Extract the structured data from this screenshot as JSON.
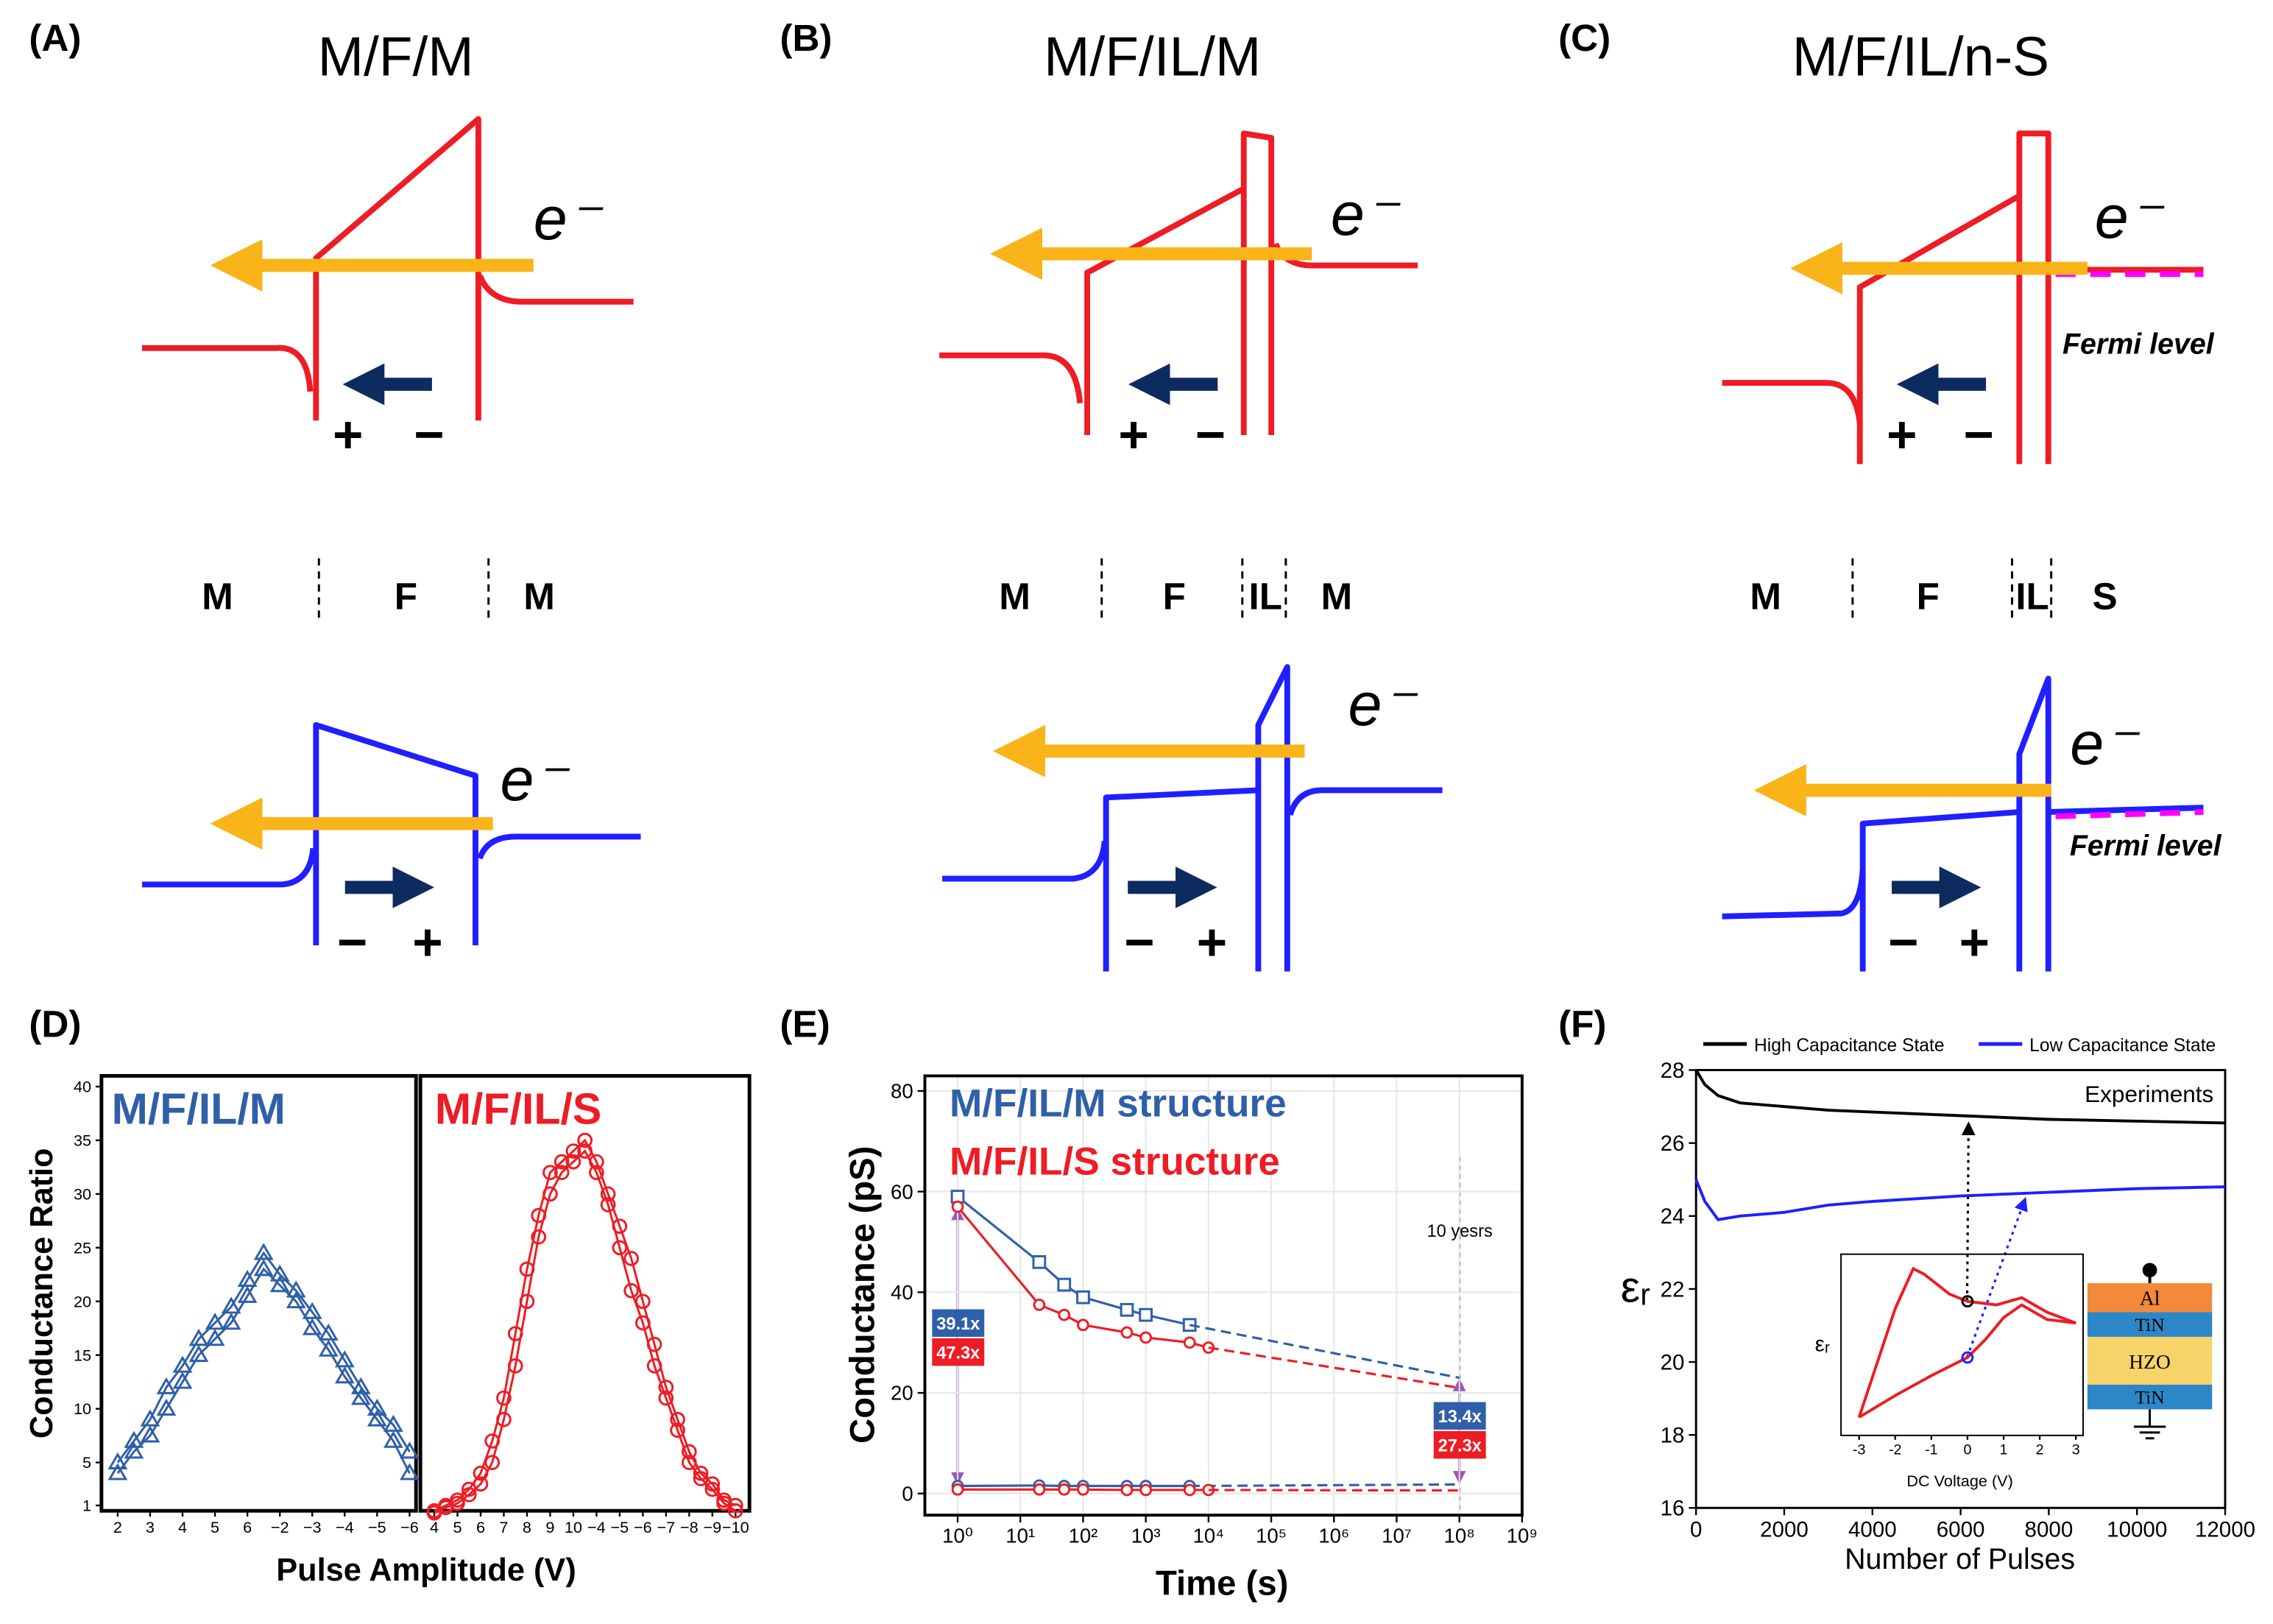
{
  "panels": [
    {
      "letter": "(A)",
      "title": "M/F/M",
      "electrons": [
        "e⁻",
        "e⁻"
      ],
      "charges": [
        "+",
        "−",
        "−",
        "+"
      ],
      "regions": [
        "M",
        "F",
        "M"
      ]
    },
    {
      "letter": "(B)",
      "title": "M/F/IL/M",
      "electrons": [
        "e⁻",
        "e⁻"
      ],
      "charges": [
        "+",
        "−",
        "−",
        "+"
      ],
      "regions": [
        "M",
        "F",
        "IL",
        "M"
      ]
    },
    {
      "letter": "(C)",
      "title": "M/F/IL/n-S",
      "electrons": [
        "e⁻",
        "e⁻"
      ],
      "charges": [
        "+",
        "−",
        "−",
        "+"
      ],
      "regions": [
        "M",
        "F",
        "IL",
        "S"
      ],
      "fermi": [
        "Fermi level",
        "Fermi level"
      ]
    }
  ],
  "device_stack": [
    "Al",
    "TiN",
    "HZO",
    "TiN"
  ],
  "chart_data": [
    {
      "type": "line",
      "label": "(D)",
      "ylabel": "Conductance Ratio",
      "xlabel": "Pulse Amplitude (V)",
      "annotation": "M/F/IL/M",
      "xlim": [
        -0.5,
        9.2
      ],
      "ylim": [
        0.5,
        41
      ],
      "xticks": [
        {
          "value": 0,
          "label": "2"
        },
        {
          "value": 1,
          "label": "3"
        },
        {
          "value": 2,
          "label": "4"
        },
        {
          "value": 3,
          "label": "5"
        },
        {
          "value": 4,
          "label": "6"
        },
        {
          "value": 5,
          "label": "−2"
        },
        {
          "value": 6,
          "label": "−3"
        },
        {
          "value": 7,
          "label": "−4"
        },
        {
          "value": 8,
          "label": "−5"
        },
        {
          "value": 9,
          "label": "−6"
        }
      ],
      "yticks": [
        1,
        5,
        10,
        15,
        20,
        25,
        30,
        35,
        40
      ],
      "series": [
        {
          "color": "#2f5fa8",
          "marker": "triangle",
          "x": [
            0,
            0.5,
            1,
            1.5,
            2,
            2.5,
            3,
            3.5,
            4,
            4.5,
            5,
            5.5,
            6,
            6.5,
            7,
            7.5,
            8,
            8.5,
            9
          ],
          "values": [
            4,
            6,
            7.5,
            10,
            12.5,
            15,
            16.5,
            18,
            20.5,
            23,
            21.5,
            20,
            17.5,
            15.5,
            13,
            11,
            9,
            7,
            4
          ]
        },
        {
          "color": "#2f5fa8",
          "marker": "triangle",
          "x": [
            0,
            0.5,
            1,
            1.5,
            2,
            2.5,
            3,
            3.5,
            4,
            4.5,
            5,
            5.5,
            6,
            6.5,
            7,
            7.5,
            8,
            8.5,
            9
          ],
          "values": [
            5,
            7,
            9,
            12,
            14,
            16.5,
            18,
            19.5,
            22,
            24.5,
            22.5,
            21,
            19,
            17,
            14.5,
            12,
            10,
            8.5,
            6
          ]
        }
      ]
    },
    {
      "type": "line",
      "annotation": "M/F/IL/S",
      "xlim": [
        -0.6,
        13.6
      ],
      "ylim": [
        0.5,
        41
      ],
      "xticks": [
        {
          "value": 0,
          "label": "4"
        },
        {
          "value": 1,
          "label": "5"
        },
        {
          "value": 2,
          "label": "6"
        },
        {
          "value": 3,
          "label": "7"
        },
        {
          "value": 4,
          "label": "8"
        },
        {
          "value": 5,
          "label": "9"
        },
        {
          "value": 6,
          "label": "10"
        },
        {
          "value": 7,
          "label": "−4"
        },
        {
          "value": 8,
          "label": "−5"
        },
        {
          "value": 9,
          "label": "−6"
        },
        {
          "value": 10,
          "label": "−7"
        },
        {
          "value": 11,
          "label": "−8"
        },
        {
          "value": 12,
          "label": "−9"
        },
        {
          "value": 13,
          "label": "−10"
        }
      ],
      "series": [
        {
          "color": "#ee1c24",
          "marker": "circle",
          "x": [
            0,
            0.5,
            1,
            1.5,
            2,
            2.5,
            3,
            3.5,
            4,
            4.5,
            5,
            5.5,
            6,
            6.5,
            7,
            7.5,
            8,
            8.5,
            9,
            9.5,
            10,
            10.5,
            11,
            11.5,
            12,
            12.5,
            13
          ],
          "values": [
            0.5,
            1,
            1.5,
            2.5,
            4,
            7,
            11,
            17,
            23,
            28,
            32,
            33,
            34,
            35,
            33,
            30,
            27,
            24,
            20,
            16,
            12,
            9,
            6,
            4,
            3,
            1.5,
            1
          ]
        },
        {
          "color": "#ee1c24",
          "marker": "circle",
          "x": [
            0,
            0.5,
            1,
            1.5,
            2,
            2.5,
            3,
            3.5,
            4,
            4.5,
            5,
            5.5,
            6,
            6.5,
            7,
            7.5,
            8,
            8.5,
            9,
            9.5,
            10,
            10.5,
            11,
            11.5,
            12,
            12.5,
            13
          ],
          "values": [
            0.3,
            0.8,
            1.2,
            2,
            3,
            5,
            9,
            14,
            20,
            26,
            30,
            32,
            33,
            34,
            32,
            29,
            25,
            21,
            18,
            14,
            11,
            8,
            5,
            3.5,
            2.5,
            1.2,
            0.5
          ]
        }
      ]
    },
    {
      "type": "line",
      "label": "(E)",
      "ylabel": "Conductance (pS)",
      "xlabel": "Time (s)",
      "xscale": "log",
      "grid": true,
      "xlim": [
        0.3,
        1000000000
      ],
      "ylim": [
        -4.3,
        83
      ],
      "xticks": [
        {
          "value": 1,
          "label": "10⁰"
        },
        {
          "value": 10,
          "label": "10¹"
        },
        {
          "value": 100,
          "label": "10²"
        },
        {
          "value": 1000,
          "label": "10³"
        },
        {
          "value": 10000,
          "label": "10⁴"
        },
        {
          "value": 100000,
          "label": "10⁵"
        },
        {
          "value": 1000000,
          "label": "10⁶"
        },
        {
          "value": 10000000,
          "label": "10⁷"
        },
        {
          "value": 100000000,
          "label": "10⁸"
        },
        {
          "value": 1000000000,
          "label": "10⁹"
        }
      ],
      "yticks": [
        0,
        20,
        40,
        60,
        80
      ],
      "annotations": [
        "39.1x",
        "47.3x",
        "13.4x",
        "27.3x",
        "10 yesrs"
      ],
      "series": [
        {
          "name": "M/F/IL/M structure",
          "color": "#2f5fa8",
          "marker": "square",
          "x": [
            1,
            20,
            50,
            100,
            500,
            1000,
            5000
          ],
          "values": [
            59,
            46,
            41.5,
            39,
            36.5,
            35.5,
            33.5
          ]
        },
        {
          "name": "M/F/IL/S structure",
          "color": "#ee1c24",
          "marker": "circle",
          "x": [
            1,
            20,
            50,
            100,
            500,
            1000,
            5000,
            10000
          ],
          "values": [
            57,
            37.5,
            35.5,
            33.5,
            32,
            31,
            30,
            29
          ]
        },
        {
          "color": "#2f5fa8",
          "dashed": true,
          "x": [
            5000,
            100000000
          ],
          "values": [
            33.5,
            23
          ]
        },
        {
          "color": "#ee1c24",
          "dashed": true,
          "x": [
            10000,
            100000000
          ],
          "values": [
            29,
            21
          ]
        },
        {
          "color": "#2f5fa8",
          "marker": "circle",
          "x": [
            1,
            20,
            50,
            100,
            500,
            1000,
            5000
          ],
          "values": [
            1.5,
            1.6,
            1.5,
            1.5,
            1.5,
            1.5,
            1.5
          ]
        },
        {
          "color": "#2f5fa8",
          "dashed": true,
          "x": [
            5000,
            100000000
          ],
          "values": [
            1.5,
            1.8
          ]
        },
        {
          "color": "#ee1c24",
          "marker": "circle",
          "x": [
            1,
            20,
            50,
            100,
            500,
            1000,
            5000,
            10000
          ],
          "values": [
            0.8,
            0.8,
            0.8,
            0.8,
            0.7,
            0.7,
            0.7,
            0.7
          ]
        },
        {
          "color": "#ee1c24",
          "dashed": true,
          "x": [
            10000,
            100000000
          ],
          "values": [
            0.7,
            0.6
          ]
        }
      ]
    },
    {
      "type": "line",
      "label": "(F)",
      "ylabel": "εᵣ",
      "xlabel": "Number of Pulses",
      "annotation": "Experiments",
      "legend": "top",
      "xlim": [
        0,
        12000
      ],
      "xticks": [
        0,
        2000,
        4000,
        6000,
        8000,
        10000,
        12000
      ],
      "ylim": [
        16,
        28
      ],
      "yticks": [
        16,
        18,
        20,
        22,
        24,
        26,
        28
      ],
      "series": [
        {
          "name": "High Capacitance State",
          "color": "#000000",
          "x": [
            0,
            200,
            500,
            1000,
            2000,
            3000,
            4000,
            6000,
            8000,
            10000,
            12000
          ],
          "values": [
            28,
            27.6,
            27.3,
            27.1,
            27,
            26.9,
            26.85,
            26.75,
            26.65,
            26.6,
            26.55
          ]
        },
        {
          "name": "Low Capacitance State",
          "color": "#1f1fff",
          "x": [
            0,
            200,
            500,
            1000,
            2000,
            3000,
            4000,
            6000,
            8000,
            10000,
            12000
          ],
          "values": [
            25,
            24.4,
            23.9,
            24,
            24.1,
            24.3,
            24.4,
            24.55,
            24.65,
            24.75,
            24.8
          ]
        }
      ]
    },
    {
      "type": "line",
      "xlabel": "DC Voltage (V)",
      "ylabel": "εᵣ",
      "xlim": [
        -3.5,
        3.2
      ],
      "xticks": [
        -3,
        -2,
        -1,
        0,
        1,
        2,
        3
      ],
      "ylim": [
        0,
        10
      ],
      "series": [
        {
          "color": "#ee1c24",
          "x": [
            -3,
            -2.5,
            -2,
            -1.5,
            -1.2,
            -0.5,
            0,
            0.8,
            1.5,
            2.2,
            3,
            2.2,
            1.5,
            1,
            0.5,
            0,
            -1,
            -2,
            -3
          ],
          "values": [
            1,
            4,
            7,
            9.2,
            8.9,
            7.8,
            7.4,
            7.2,
            7.6,
            6.8,
            6.2,
            6.4,
            7.2,
            6.5,
            5.3,
            4.3,
            3.3,
            2.2,
            1
          ]
        }
      ]
    }
  ]
}
